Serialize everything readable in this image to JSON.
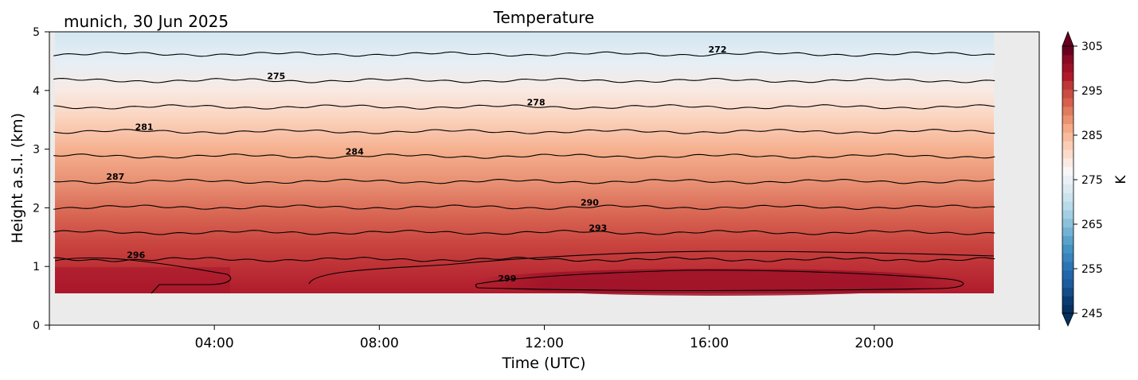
{
  "chart_data": {
    "type": "heatmap",
    "title": "Temperature",
    "subtitle": "munich, 30 Jun 2025",
    "xlabel": "Time (UTC)",
    "ylabel": "Height a.s.l. (km)",
    "x_ticks": [
      "04:00",
      "08:00",
      "12:00",
      "16:00",
      "20:00"
    ],
    "x_tick_hours": [
      4,
      8,
      12,
      16,
      20
    ],
    "x_range_hours": [
      0,
      24
    ],
    "data_x_range_hours": [
      0.1,
      23
    ],
    "y_ticks": [
      "0",
      "1",
      "2",
      "3",
      "4",
      "5"
    ],
    "ylim": [
      0,
      5
    ],
    "data_y_range_km": [
      0.55,
      5
    ],
    "background_color": "#ebebeb",
    "colorbar": {
      "label": "K",
      "min": 245,
      "max": 305,
      "ticks": [
        "245",
        "255",
        "265",
        "275",
        "285",
        "295",
        "305"
      ],
      "colors": [
        "#053061",
        "#0a3b70",
        "#134c87",
        "#1c5c9e",
        "#2166ac",
        "#2c75b5",
        "#3884bf",
        "#4393c3",
        "#5ba2cb",
        "#74b2d4",
        "#8cc1dc",
        "#a3cfe4",
        "#b8dbea",
        "#cce3ee",
        "#dde9f1",
        "#eaf0f5",
        "#f7f7f7",
        "#faeae3",
        "#fbdccb",
        "#fbcdb4",
        "#f8bc9d",
        "#f4a987",
        "#ea9270",
        "#df7b5e",
        "#d6604d",
        "#ca4b42",
        "#bd3736",
        "#b2182b",
        "#9d1127",
        "#8a0a22",
        "#67001f"
      ]
    },
    "contours": [
      {
        "label": "272",
        "height_km": 4.62,
        "label_hour": 16.2
      },
      {
        "label": "275",
        "height_km": 4.17,
        "label_hour": 5.5
      },
      {
        "label": "278",
        "height_km": 3.72,
        "label_hour": 11.8
      },
      {
        "label": "281",
        "height_km": 3.3,
        "label_hour": 2.3
      },
      {
        "label": "284",
        "height_km": 2.88,
        "label_hour": 7.4
      },
      {
        "label": "287",
        "height_km": 2.45,
        "label_hour": 1.6
      },
      {
        "label": "290",
        "height_km": 2.01,
        "label_hour": 13.1
      },
      {
        "label": "293",
        "height_km": 1.58,
        "label_hour": 13.3
      },
      {
        "label": "296",
        "height_km": 1.12,
        "label_hour": 2.1
      },
      {
        "label": "299",
        "height_km": 0.72,
        "label_hour": 11.1
      }
    ]
  }
}
